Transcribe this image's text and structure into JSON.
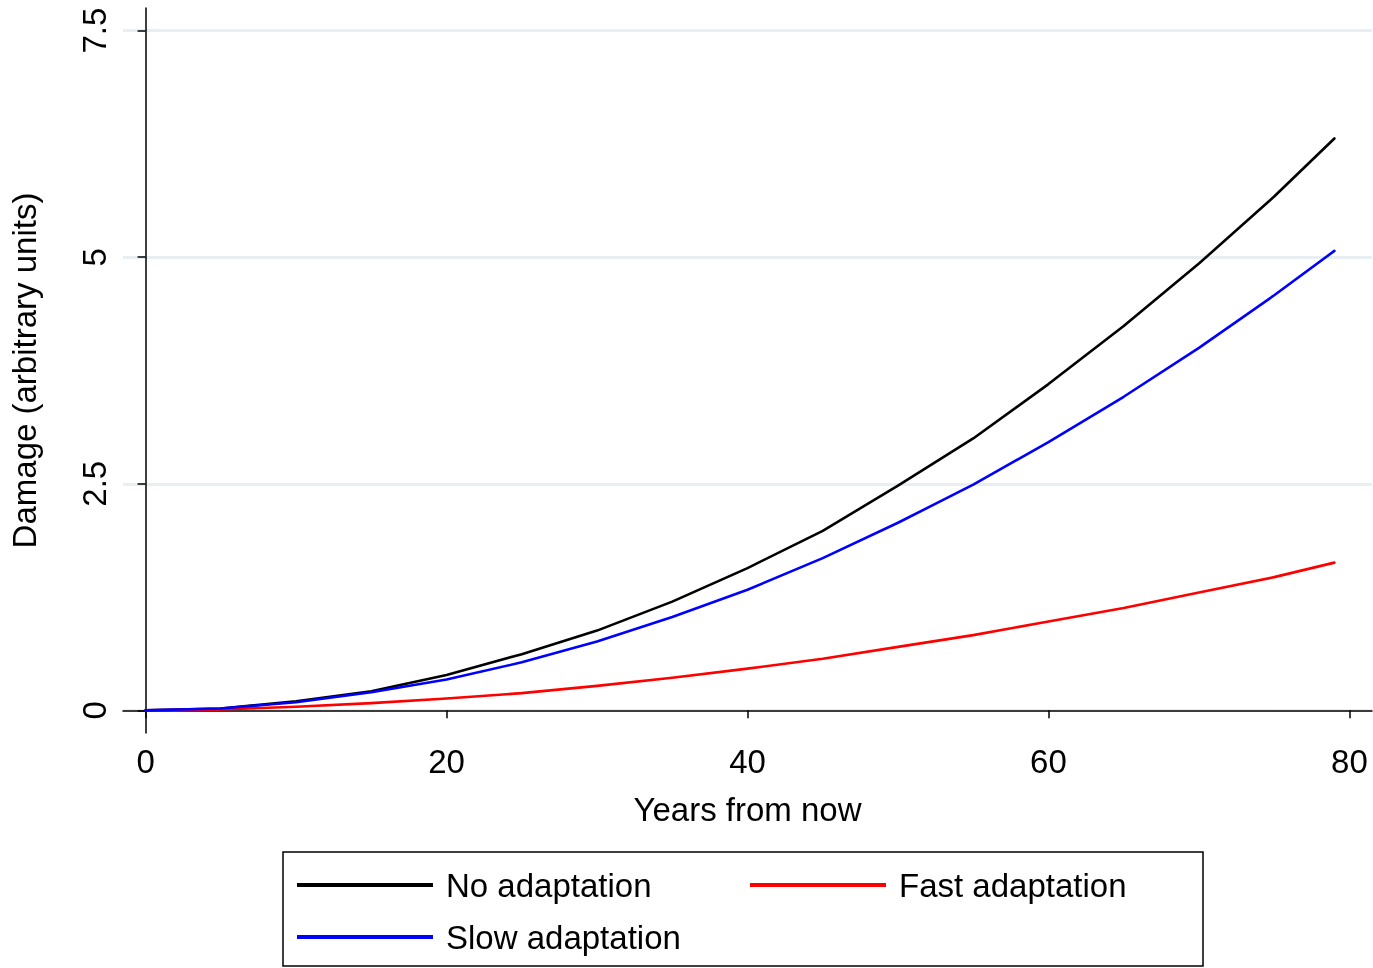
{
  "chart_data": {
    "type": "line",
    "xlabel": "Years from now",
    "ylabel": "Damage (arbitrary units)",
    "x": [
      0,
      5,
      10,
      15,
      20,
      25,
      30,
      35,
      40,
      45,
      50,
      55,
      60,
      65,
      70,
      75,
      79
    ],
    "series": [
      {
        "name": "No adaptation",
        "color": "#000000",
        "values": [
          0,
          0.02,
          0.1,
          0.21,
          0.39,
          0.62,
          0.88,
          1.2,
          1.57,
          1.98,
          2.48,
          3.0,
          3.6,
          4.24,
          4.93,
          5.67,
          6.31
        ]
      },
      {
        "name": "Fast adaptation",
        "color": "#ff0000",
        "values": [
          0,
          0.01,
          0.04,
          0.08,
          0.13,
          0.19,
          0.27,
          0.36,
          0.46,
          0.57,
          0.7,
          0.83,
          0.98,
          1.13,
          1.3,
          1.47,
          1.63
        ]
      },
      {
        "name": "Slow adaptation",
        "color": "#0000ff",
        "values": [
          0,
          0.02,
          0.09,
          0.2,
          0.34,
          0.53,
          0.76,
          1.03,
          1.33,
          1.68,
          2.07,
          2.49,
          2.96,
          3.46,
          4.0,
          4.58,
          5.07
        ]
      }
    ],
    "xlim": [
      -1.5,
      81.5
    ],
    "xticks": [
      0,
      20,
      40,
      60,
      80
    ],
    "ylim": [
      -0.25,
      7.75
    ],
    "yticks": [
      0,
      2.5,
      5,
      7.5
    ],
    "grid": "y",
    "legend": "bottom",
    "marker": "none",
    "line_style": "solid"
  }
}
